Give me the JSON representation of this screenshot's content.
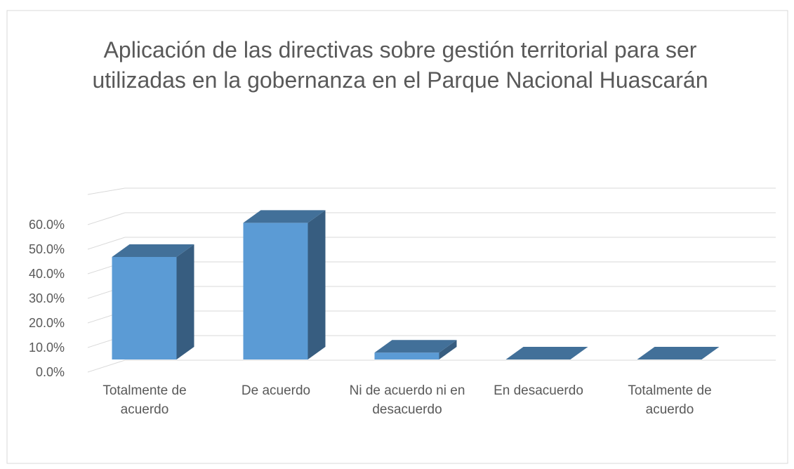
{
  "chart_data": {
    "type": "bar3d",
    "title": "Aplicación de las directivas sobre gestión territorial para ser utilizadas en la gobernanza en el Parque Nacional Huascarán",
    "categories": [
      "Totalmente de acuerdo",
      "De acuerdo",
      "Ni de acuerdo ni en desacuerdo",
      "En desacuerdo",
      "Totalmente de acuerdo"
    ],
    "values": [
      41.7,
      55.6,
      2.8,
      0,
      0
    ],
    "color": "#5b9bd5",
    "ylim": [
      0,
      70
    ],
    "yticks": [
      {
        "value": 0,
        "label": "0.0%"
      },
      {
        "value": 10,
        "label": "10.0%"
      },
      {
        "value": 20,
        "label": "20.0%"
      },
      {
        "value": 30,
        "label": "30.0%"
      },
      {
        "value": 40,
        "label": "40.0%"
      },
      {
        "value": 50,
        "label": "50.0%"
      },
      {
        "value": 60,
        "label": "60.0%"
      }
    ],
    "grid": true
  }
}
